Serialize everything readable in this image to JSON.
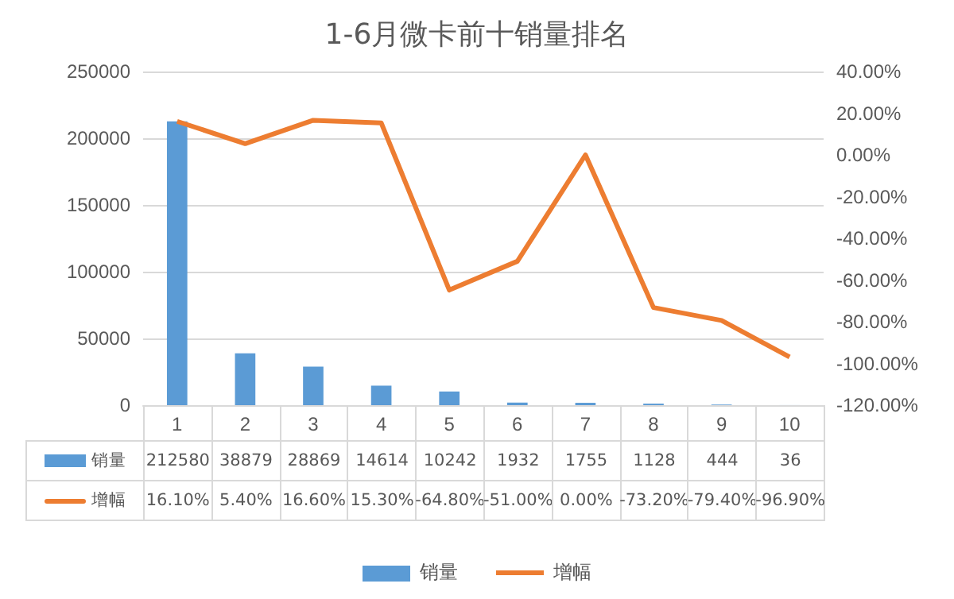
{
  "chart_data": {
    "type": "bar",
    "title": "1-6月微卡前十销量排名",
    "categories": [
      "1",
      "2",
      "3",
      "4",
      "5",
      "6",
      "7",
      "8",
      "9",
      "10"
    ],
    "series": [
      {
        "name": "销量",
        "type": "bar",
        "color": "#5b9bd5",
        "values": [
          212580,
          38879,
          28869,
          14614,
          10242,
          1932,
          1755,
          1128,
          444,
          36
        ],
        "value_labels": [
          "212580",
          "38879",
          "28869",
          "14614",
          "10242",
          "1932",
          "1755",
          "1128",
          "444",
          "36"
        ]
      },
      {
        "name": "增幅",
        "type": "line",
        "axis": "y2",
        "color": "#ed7d31",
        "values": [
          16.1,
          5.4,
          16.6,
          15.3,
          -64.8,
          -51.0,
          0.0,
          -73.2,
          -79.4,
          -96.9
        ],
        "value_labels": [
          "16.10%",
          "5.40%",
          "16.60%",
          "15.30%",
          "-64.80%",
          "-51.00%",
          "0.00%",
          "-73.20%",
          "-79.40%",
          "-96.90%"
        ]
      }
    ],
    "ylim": [
      0,
      250000
    ],
    "yticks": [
      0,
      50000,
      100000,
      150000,
      200000,
      250000
    ],
    "y2lim": [
      -120,
      40
    ],
    "y2ticks": [
      {
        "value": -120,
        "label": "-120.00%"
      },
      {
        "value": -100,
        "label": "-100.00%"
      },
      {
        "value": -80,
        "label": "-80.00%"
      },
      {
        "value": -60,
        "label": "-60.00%"
      },
      {
        "value": -40,
        "label": "-40.00%"
      },
      {
        "value": -20,
        "label": "-20.00%"
      },
      {
        "value": 0,
        "label": "0.00%"
      },
      {
        "value": 20,
        "label": "20.00%"
      },
      {
        "value": 40,
        "label": "40.00%"
      }
    ],
    "grid": "y",
    "legend": "bottom",
    "marker": "none"
  }
}
